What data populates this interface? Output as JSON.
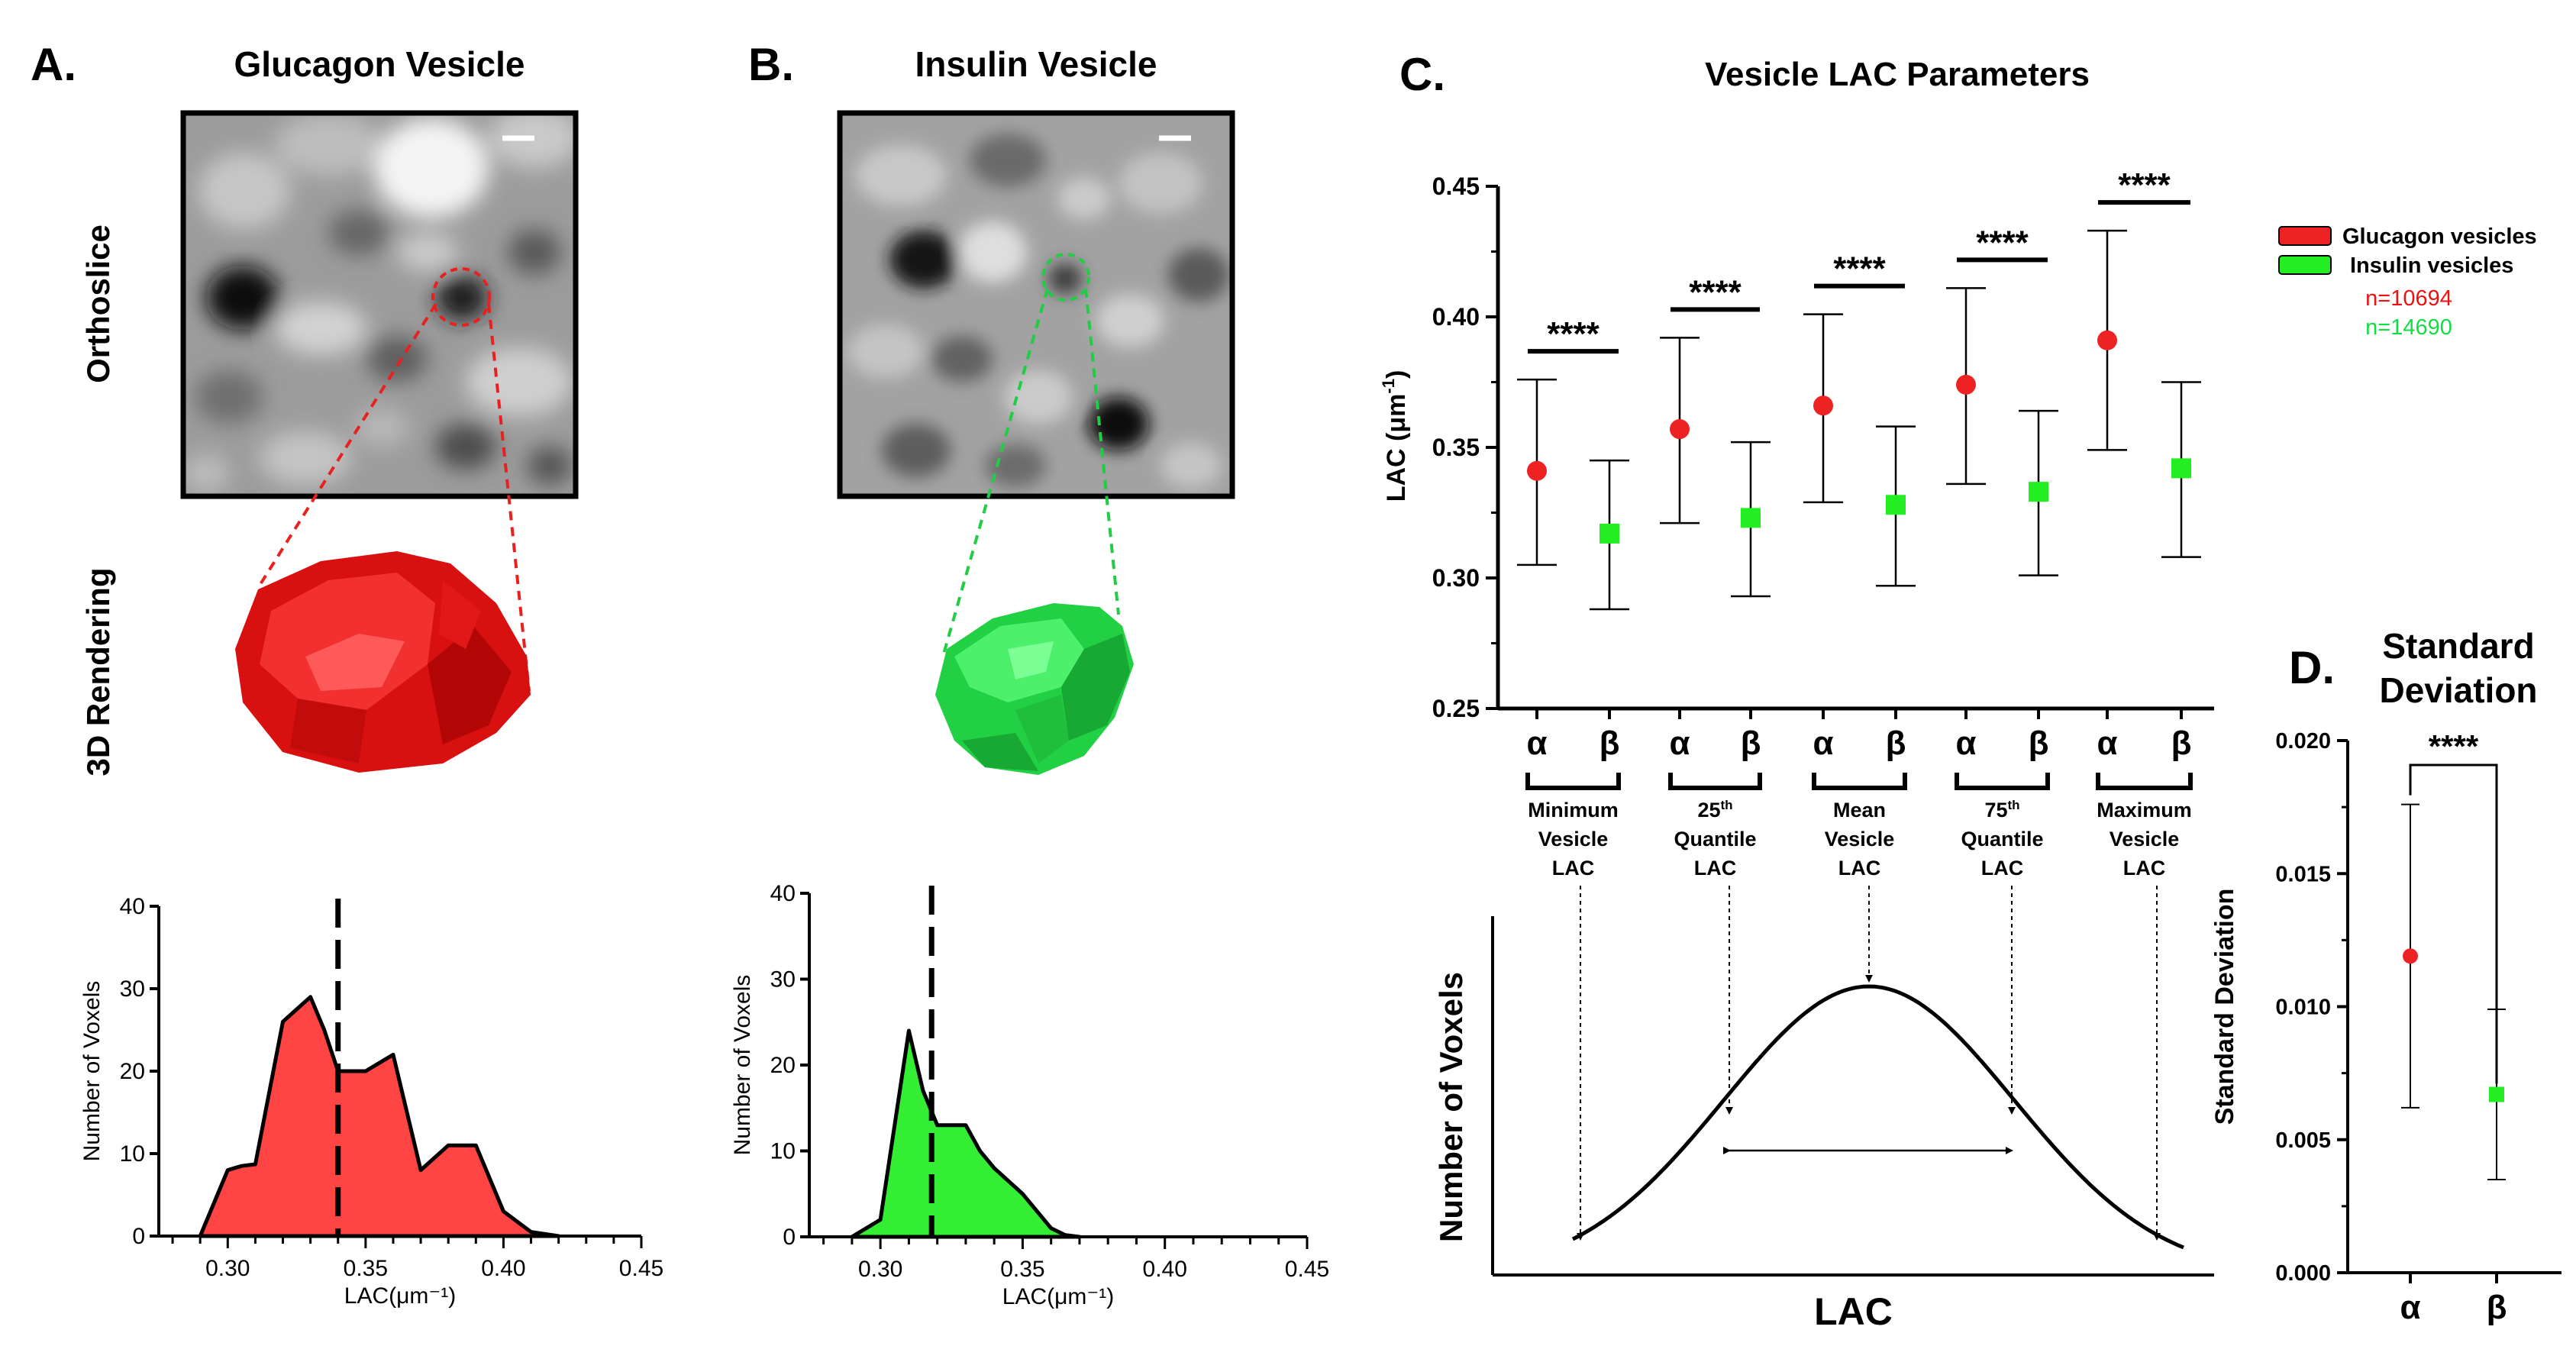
{
  "figure": {
    "panel_a_letter": "A.",
    "panel_b_letter": "B.",
    "panel_c_letter": "C.",
    "panel_d_letter": "D.",
    "panel_a_title": "Glucagon Vesicle",
    "panel_b_title": "Insulin Vesicle",
    "row_label_orthoslice": "Orthoslice",
    "row_label_rendering": "3D Rendering"
  },
  "colors": {
    "glucagon": "#ee2222",
    "insulin": "#22ee22",
    "glucagon_fill": "#ff4444",
    "insulin_fill": "#33ee33",
    "glucagon_text": "#ee1111",
    "insulin_text": "#11dd44"
  },
  "chart_data": [
    {
      "id": "hist_glucagon",
      "type": "area",
      "xlabel": "LAC(μm⁻¹)",
      "ylabel": "Number of Voxels",
      "xlim": [
        0.275,
        0.45
      ],
      "ylim": [
        0,
        40
      ],
      "xticks": [
        "0.30",
        "0.35",
        "0.40",
        "0.45"
      ],
      "xtick_values": [
        0.3,
        0.35,
        0.4,
        0.45
      ],
      "yticks": [
        "0",
        "10",
        "20",
        "30",
        "40"
      ],
      "ytick_values": [
        0,
        10,
        20,
        30,
        40
      ],
      "x": [
        0.29,
        0.3,
        0.305,
        0.31,
        0.32,
        0.33,
        0.335,
        0.34,
        0.35,
        0.36,
        0.37,
        0.38,
        0.39,
        0.4,
        0.41,
        0.42
      ],
      "y": [
        0,
        8,
        8.5,
        8.7,
        26,
        29,
        25,
        20,
        20,
        22,
        8,
        11,
        11,
        3,
        0.5,
        0
      ],
      "mean_line": 0.34
    },
    {
      "id": "hist_insulin",
      "type": "area",
      "xlabel": "LAC(μm⁻¹)",
      "ylabel": "Number of Voxels",
      "xlim": [
        0.275,
        0.45
      ],
      "ylim": [
        0,
        40
      ],
      "xticks": [
        "0.30",
        "0.35",
        "0.40",
        "0.45"
      ],
      "xtick_values": [
        0.3,
        0.35,
        0.4,
        0.45
      ],
      "yticks": [
        "0",
        "10",
        "20",
        "30",
        "40"
      ],
      "ytick_values": [
        0,
        10,
        20,
        30,
        40
      ],
      "x": [
        0.29,
        0.3,
        0.31,
        0.315,
        0.32,
        0.33,
        0.335,
        0.34,
        0.35,
        0.36,
        0.365,
        0.37
      ],
      "y": [
        0,
        2,
        24,
        17,
        13,
        13,
        10,
        8,
        5,
        1,
        0.2,
        0
      ],
      "mean_line": 0.318
    },
    {
      "id": "lac_parameters",
      "type": "scatter",
      "title": "Vesicle LAC Parameters",
      "ylabel": "LAC (μm",
      "ylabel_sup": "-1",
      "ylabel_close": ")",
      "ylim": [
        0.25,
        0.45
      ],
      "yticks": [
        "0.25",
        "0.30",
        "0.35",
        "0.40",
        "0.45"
      ],
      "ytick_values": [
        0.25,
        0.3,
        0.35,
        0.4,
        0.45
      ],
      "group_labels": [
        "α",
        "β"
      ],
      "significance": "****",
      "legend": {
        "glucagon": "Glucagon vesicles",
        "insulin": "Insulin vesicles",
        "n_glucagon": "n=10694",
        "n_insulin": "n=14690"
      },
      "categories": [
        {
          "line1": "Minimum",
          "line2": "Vesicle",
          "line3": "LAC",
          "sup": ""
        },
        {
          "line1": "25",
          "line2": "Quantile",
          "line3": "LAC",
          "sup": "th"
        },
        {
          "line1": "Mean",
          "line2": "Vesicle",
          "line3": "LAC",
          "sup": ""
        },
        {
          "line1": "75",
          "line2": "Quantile",
          "line3": "LAC",
          "sup": "th"
        },
        {
          "line1": "Maximum",
          "line2": "Vesicle",
          "line3": "LAC",
          "sup": ""
        }
      ],
      "series": [
        {
          "name": "Glucagon vesicles",
          "values": [
            0.341,
            0.357,
            0.366,
            0.374,
            0.391
          ],
          "upper": [
            0.376,
            0.392,
            0.401,
            0.411,
            0.433
          ],
          "lower": [
            0.305,
            0.321,
            0.329,
            0.336,
            0.349
          ]
        },
        {
          "name": "Insulin vesicles",
          "values": [
            0.317,
            0.323,
            0.328,
            0.333,
            0.342
          ],
          "upper": [
            0.345,
            0.352,
            0.358,
            0.364,
            0.375
          ],
          "lower": [
            0.288,
            0.293,
            0.297,
            0.301,
            0.308
          ]
        }
      ]
    },
    {
      "id": "schematic",
      "type": "line",
      "xlabel": "LAC",
      "ylabel": "Number of Voxels"
    },
    {
      "id": "std_dev",
      "type": "scatter",
      "title_line1": "Standard",
      "title_line2": "Deviation",
      "ylabel": "Standard Deviation",
      "ylim": [
        0,
        0.02
      ],
      "yticks": [
        "0.000",
        "0.005",
        "0.010",
        "0.015",
        "0.020"
      ],
      "ytick_values": [
        0,
        0.005,
        0.01,
        0.015,
        0.02
      ],
      "categories": [
        "α",
        "β"
      ],
      "values": [
        0.0119,
        0.0067
      ],
      "upper": [
        0.0176,
        0.0099
      ],
      "lower": [
        0.0062,
        0.0035
      ],
      "significance": "****"
    }
  ]
}
